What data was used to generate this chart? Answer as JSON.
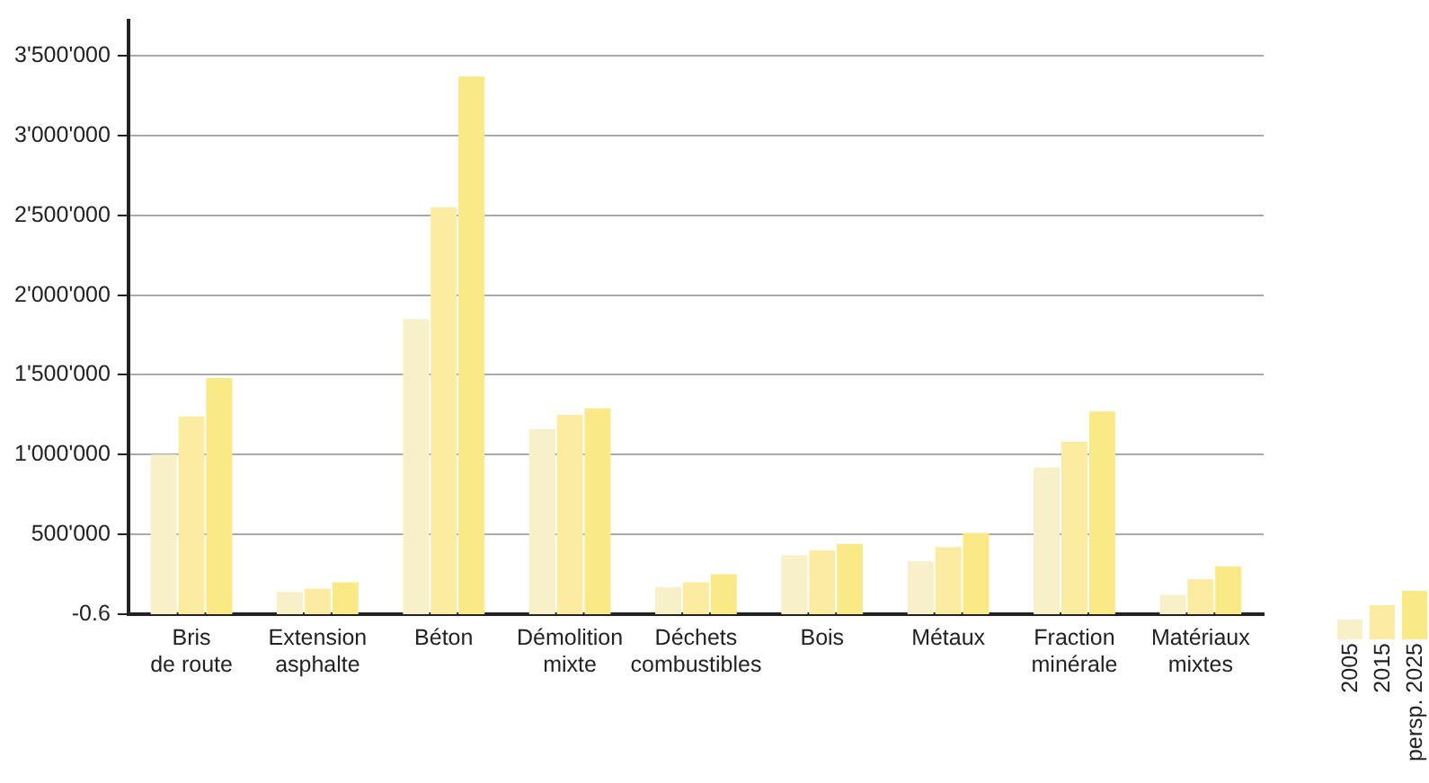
{
  "chart_data": {
    "type": "bar",
    "categories": [
      "Bris de route",
      "Extension asphalte",
      "Béton",
      "Démolition mixte",
      "Déchets combustibles",
      "Bois",
      "Métaux",
      "Fraction minérale",
      "Matériaux mixtes"
    ],
    "series": [
      {
        "name": "2005",
        "color": "#f8f0c8",
        "values": [
          1000000,
          140000,
          1850000,
          1160000,
          170000,
          370000,
          330000,
          920000,
          120000
        ]
      },
      {
        "name": "2015",
        "color": "#fbeca2",
        "values": [
          1240000,
          160000,
          2550000,
          1250000,
          200000,
          400000,
          420000,
          1080000,
          220000
        ]
      },
      {
        "name": "persp. 2025",
        "color": "#fae987",
        "values": [
          1480000,
          200000,
          3370000,
          1290000,
          250000,
          440000,
          510000,
          1270000,
          300000
        ]
      }
    ],
    "ylim": [
      -0.6,
      3720000
    ],
    "yticks": [
      {
        "value": -0.6,
        "label": "-0.6"
      },
      {
        "value": 500000,
        "label": "500'000"
      },
      {
        "value": 1000000,
        "label": "1'000'000"
      },
      {
        "value": 1500000,
        "label": "1'500'000"
      },
      {
        "value": 2000000,
        "label": "2'000'000"
      },
      {
        "value": 2500000,
        "label": "2'500'000"
      },
      {
        "value": 3000000,
        "label": "3'000'000"
      },
      {
        "value": 3500000,
        "label": "3'500'000"
      }
    ],
    "grid": "y",
    "legend": "bottom right"
  }
}
